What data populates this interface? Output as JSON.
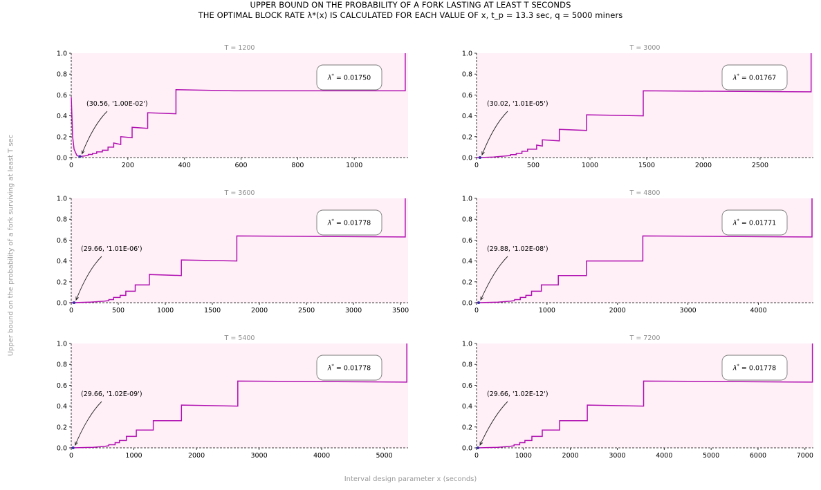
{
  "title": {
    "line1": "UPPER BOUND ON THE PROBABILITY OF A FORK LASTING AT LEAST T SECONDS",
    "line2": "THE OPTIMAL BLOCK RATE λ*(x) IS CALCULATED FOR EACH VALUE OF x, t_p = 13.3 sec, q = 5000 miners"
  },
  "ylabel": "Upper bound on the probability of a fork surviving at least T sec",
  "xlabel": "Interval design parameter x (seconds)",
  "colors": {
    "fill": "#fff0f7",
    "line": "#b010b0",
    "min_marker": "#3030a0"
  },
  "chart_data": [
    {
      "type": "line",
      "title": "T = 1200",
      "xlim": [
        0,
        1190
      ],
      "ylim": [
        0,
        1.0
      ],
      "xticks": [
        0,
        200,
        400,
        600,
        800,
        1000
      ],
      "yticks": [
        0.0,
        0.2,
        0.4,
        0.6,
        0.8,
        1.0
      ],
      "lambda_label": "0.01750",
      "min_point": {
        "x": 30.56,
        "y": 0.01,
        "label": "(30.56, '1.00E-02')"
      },
      "series": [
        {
          "x": [
            0,
            5,
            10,
            20,
            30.56,
            45,
            60,
            60,
            75,
            75,
            90,
            90,
            110,
            110,
            130,
            130,
            150,
            150,
            175,
            175,
            215,
            215,
            270,
            270,
            370,
            370,
            575,
            575,
            1180,
            1180
          ],
          "y": [
            0.58,
            0.2,
            0.08,
            0.02,
            0.01,
            0.015,
            0.022,
            0.03,
            0.03,
            0.04,
            0.04,
            0.055,
            0.055,
            0.07,
            0.07,
            0.1,
            0.1,
            0.14,
            0.125,
            0.2,
            0.19,
            0.29,
            0.28,
            0.43,
            0.42,
            0.65,
            0.64,
            0.64,
            0.64,
            1.0
          ]
        }
      ]
    },
    {
      "type": "line",
      "title": "T = 3000",
      "xlim": [
        0,
        2970
      ],
      "ylim": [
        0,
        1.0
      ],
      "xticks": [
        0,
        500,
        1000,
        1500,
        2000,
        2500
      ],
      "yticks": [
        0.0,
        0.2,
        0.4,
        0.6,
        0.8,
        1.0
      ],
      "lambda_label": "0.01767",
      "min_point": {
        "x": 30.02,
        "y": 1.01e-05,
        "label": "(30.02, '1.01E-05')"
      },
      "series": [
        {
          "x": [
            0,
            30.02,
            150,
            250,
            300,
            300,
            350,
            350,
            400,
            400,
            450,
            450,
            530,
            530,
            580,
            580,
            730,
            730,
            970,
            970,
            1470,
            1470,
            2950,
            2950
          ],
          "y": [
            0.0,
            0.0,
            0.005,
            0.015,
            0.02,
            0.028,
            0.028,
            0.04,
            0.04,
            0.06,
            0.06,
            0.08,
            0.08,
            0.12,
            0.11,
            0.17,
            0.16,
            0.27,
            0.26,
            0.41,
            0.4,
            0.64,
            0.63,
            1.0
          ]
        }
      ]
    },
    {
      "type": "line",
      "title": "T = 3600",
      "xlim": [
        0,
        3580
      ],
      "ylim": [
        0,
        1.0
      ],
      "xticks": [
        0,
        500,
        1000,
        1500,
        2000,
        2500,
        3000,
        3500
      ],
      "yticks": [
        0.0,
        0.2,
        0.4,
        0.6,
        0.8,
        1.0
      ],
      "lambda_label": "0.01778",
      "min_point": {
        "x": 29.66,
        "y": 1.01e-06,
        "label": "(29.66, '1.01E-06')"
      },
      "series": [
        {
          "x": [
            0,
            29.66,
            200,
            350,
            400,
            400,
            450,
            450,
            520,
            520,
            580,
            580,
            680,
            680,
            830,
            830,
            1170,
            1170,
            1760,
            1760,
            3550,
            3550
          ],
          "y": [
            0.0,
            0.0,
            0.005,
            0.015,
            0.02,
            0.03,
            0.03,
            0.05,
            0.05,
            0.07,
            0.07,
            0.11,
            0.11,
            0.17,
            0.17,
            0.27,
            0.26,
            0.41,
            0.4,
            0.64,
            0.63,
            1.0
          ]
        }
      ]
    },
    {
      "type": "line",
      "title": "T = 4800",
      "xlim": [
        0,
        4780
      ],
      "ylim": [
        0,
        1.0
      ],
      "xticks": [
        0,
        1000,
        2000,
        3000,
        4000
      ],
      "yticks": [
        0.0,
        0.2,
        0.4,
        0.6,
        0.8,
        1.0
      ],
      "lambda_label": "0.01771",
      "min_point": {
        "x": 29.88,
        "y": 1.02e-08,
        "label": "(29.88, '1.02E-08')"
      },
      "series": [
        {
          "x": [
            0,
            29.88,
            300,
            480,
            540,
            540,
            620,
            620,
            700,
            700,
            780,
            780,
            920,
            920,
            1160,
            1160,
            1560,
            1560,
            2360,
            2360,
            4760,
            4760
          ],
          "y": [
            0.0,
            0.0,
            0.005,
            0.015,
            0.02,
            0.03,
            0.03,
            0.05,
            0.05,
            0.07,
            0.07,
            0.11,
            0.11,
            0.17,
            0.17,
            0.26,
            0.26,
            0.4,
            0.4,
            0.64,
            0.63,
            1.0
          ]
        }
      ]
    },
    {
      "type": "line",
      "title": "T = 5400",
      "xlim": [
        0,
        5380
      ],
      "ylim": [
        0,
        1.0
      ],
      "xticks": [
        0,
        1000,
        2000,
        3000,
        4000,
        5000
      ],
      "yticks": [
        0.0,
        0.2,
        0.4,
        0.6,
        0.8,
        1.0
      ],
      "lambda_label": "0.01778",
      "min_point": {
        "x": 29.66,
        "y": 1.02e-09,
        "label": "(29.66, '1.02E-09')"
      },
      "series": [
        {
          "x": [
            0,
            29.66,
            350,
            540,
            600,
            600,
            700,
            700,
            770,
            770,
            880,
            880,
            1040,
            1040,
            1310,
            1310,
            1760,
            1760,
            2660,
            2660,
            5360,
            5360
          ],
          "y": [
            0.0,
            0.0,
            0.005,
            0.015,
            0.02,
            0.03,
            0.03,
            0.05,
            0.05,
            0.07,
            0.07,
            0.11,
            0.11,
            0.17,
            0.17,
            0.26,
            0.26,
            0.41,
            0.4,
            0.64,
            0.63,
            1.0
          ]
        }
      ]
    },
    {
      "type": "line",
      "title": "T = 7200",
      "xlim": [
        0,
        7180
      ],
      "ylim": [
        0,
        1.0
      ],
      "xticks": [
        0,
        1000,
        2000,
        3000,
        4000,
        5000,
        6000,
        7000
      ],
      "yticks": [
        0.0,
        0.2,
        0.4,
        0.6,
        0.8,
        1.0
      ],
      "lambda_label": "0.01778",
      "min_point": {
        "x": 29.66,
        "y": 1.02e-12,
        "label": "(29.66, '1.02E-12')"
      },
      "series": [
        {
          "x": [
            0,
            29.66,
            450,
            720,
            800,
            800,
            920,
            920,
            1030,
            1030,
            1180,
            1180,
            1400,
            1400,
            1770,
            1770,
            2360,
            2360,
            3560,
            3560,
            7160,
            7160
          ],
          "y": [
            0.0,
            0.0,
            0.005,
            0.015,
            0.02,
            0.03,
            0.03,
            0.05,
            0.05,
            0.07,
            0.07,
            0.11,
            0.11,
            0.17,
            0.17,
            0.26,
            0.26,
            0.41,
            0.4,
            0.64,
            0.63,
            1.0
          ]
        }
      ]
    }
  ]
}
